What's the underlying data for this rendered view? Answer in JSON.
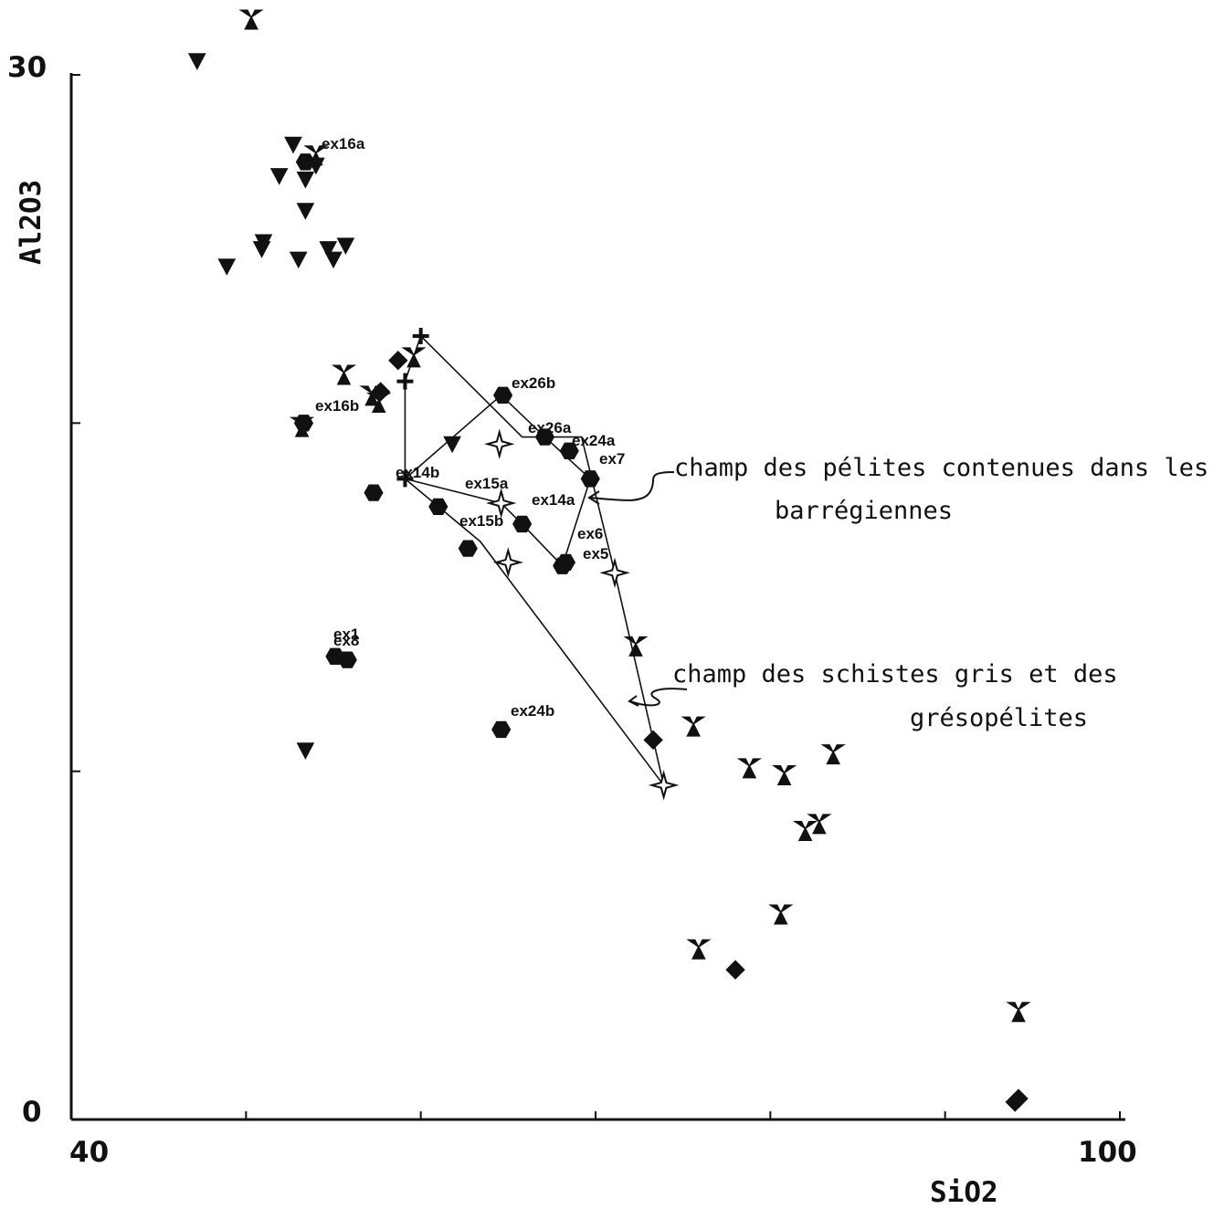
{
  "chart_data": {
    "type": "scatter",
    "xlabel": "SiO2",
    "ylabel": "Al2O3",
    "xlim": [
      40,
      100
    ],
    "ylim": [
      0,
      30
    ],
    "x_tick_labels": [
      "40",
      "100"
    ],
    "y_tick_labels": [
      "0",
      "30"
    ],
    "x_ticks": [
      40,
      50,
      60,
      70,
      80,
      90,
      100
    ],
    "y_ticks": [
      0,
      10,
      20,
      30
    ],
    "grid": false,
    "series": [
      {
        "marker": "down-triangle",
        "points": [
          [
            47.2,
            30.4
          ],
          [
            52.7,
            28.0
          ],
          [
            51.9,
            27.1
          ],
          [
            54.0,
            27.4
          ],
          [
            53.4,
            27.0
          ],
          [
            53.4,
            26.1
          ],
          [
            51.0,
            25.2
          ],
          [
            50.9,
            25.0
          ],
          [
            48.9,
            24.5
          ],
          [
            53.0,
            24.7
          ],
          [
            55.0,
            24.7
          ],
          [
            54.7,
            25.0
          ],
          [
            55.7,
            25.1
          ],
          [
            61.8,
            19.4
          ],
          [
            53.4,
            10.6
          ]
        ]
      },
      {
        "marker": "trefoil",
        "points": [
          [
            50.3,
            31.6
          ],
          [
            54.0,
            27.7
          ],
          [
            55.6,
            21.4
          ],
          [
            59.6,
            21.9
          ],
          [
            57.2,
            20.8
          ],
          [
            57.6,
            20.6
          ],
          [
            53.2,
            19.9
          ],
          [
            72.3,
            13.6
          ],
          [
            75.6,
            11.3
          ],
          [
            78.8,
            10.1
          ],
          [
            80.8,
            9.9
          ],
          [
            83.6,
            10.5
          ],
          [
            82.0,
            8.3
          ],
          [
            82.8,
            8.5
          ],
          [
            80.6,
            5.9
          ],
          [
            75.9,
            4.9
          ],
          [
            94.2,
            3.1
          ]
        ]
      },
      {
        "marker": "hexagon",
        "points": [
          [
            53.4,
            27.5
          ],
          [
            53.3,
            20.0
          ],
          [
            64.7,
            20.8
          ],
          [
            67.1,
            19.6
          ],
          [
            68.5,
            19.2
          ],
          [
            69.7,
            18.4
          ],
          [
            57.3,
            18.0
          ],
          [
            61.0,
            17.6
          ],
          [
            65.8,
            17.1
          ],
          [
            62.7,
            16.4
          ],
          [
            68.3,
            16.0
          ],
          [
            68.1,
            15.9
          ],
          [
            55.1,
            13.3
          ],
          [
            55.8,
            13.2
          ],
          [
            64.6,
            11.2
          ]
        ]
      },
      {
        "marker": "diamond",
        "points": [
          [
            57.7,
            20.9
          ],
          [
            58.7,
            21.8
          ],
          [
            73.3,
            10.9
          ],
          [
            78.0,
            4.3
          ],
          [
            94.0,
            0.5
          ],
          [
            94.2,
            0.6
          ]
        ]
      },
      {
        "marker": "cross",
        "points": [
          [
            60.0,
            22.5
          ],
          [
            59.1,
            21.2
          ],
          [
            59.1,
            18.4
          ]
        ]
      },
      {
        "marker": "open-star",
        "points": [
          [
            64.5,
            19.4
          ],
          [
            64.6,
            17.7
          ],
          [
            65.0,
            16.0
          ],
          [
            71.1,
            15.7
          ],
          [
            73.9,
            9.6
          ]
        ]
      }
    ],
    "point_labels": [
      "ex16a",
      "ex16b",
      "ex26b",
      "ex26a",
      "ex24a",
      "ex7",
      "ex14b",
      "ex15a",
      "ex14a",
      "ex15b",
      "ex6",
      "ex5",
      "ex1",
      "ex8",
      "ex24b"
    ],
    "annotations": [
      {
        "line1": "champ des pélites contenues dans les",
        "line2": "barrégiennes"
      },
      {
        "line1": "champ des schistes gris et des",
        "line2": "grésopélites"
      }
    ],
    "fields": [
      {
        "name": "pelites",
        "vertices": [
          [
            59.1,
            18.4
          ],
          [
            64.6,
            20.8
          ],
          [
            67.1,
            19.6
          ],
          [
            69.7,
            18.4
          ],
          [
            68.1,
            15.9
          ],
          [
            65.8,
            17.1
          ],
          [
            64.6,
            17.7
          ]
        ]
      },
      {
        "name": "schistes",
        "vertices": [
          [
            60.0,
            22.5
          ],
          [
            59.1,
            21.2
          ],
          [
            59.1,
            18.4
          ],
          [
            63.4,
            16.6
          ],
          [
            73.9,
            9.6
          ],
          [
            71.1,
            15.7
          ],
          [
            69.2,
            19.6
          ],
          [
            65.8,
            19.6
          ]
        ]
      }
    ]
  }
}
